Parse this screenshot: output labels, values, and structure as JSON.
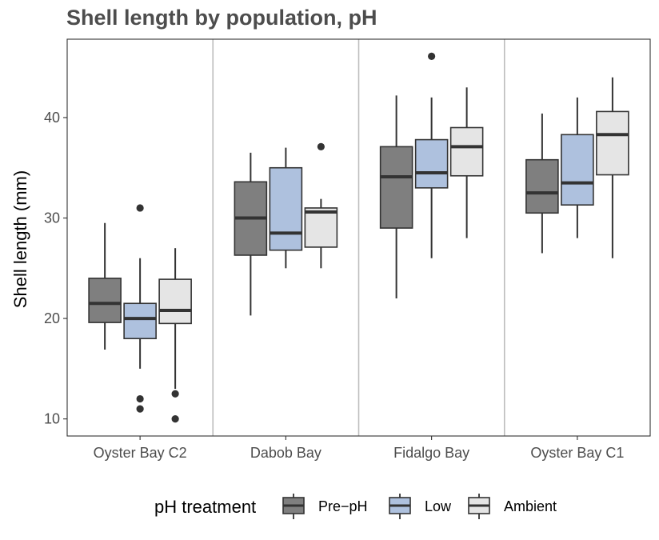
{
  "chart_data": {
    "type": "boxplot",
    "title": "Shell length by population, pH",
    "xlabel": "",
    "ylabel": "Shell length (mm)",
    "ylim": [
      8.3,
      47.8
    ],
    "yticks": [
      10,
      20,
      30,
      40
    ],
    "grid": false,
    "facet_separators": true,
    "categories": [
      "Oyster Bay C2",
      "Dabob Bay",
      "Fidalgo Bay",
      "Oyster Bay C1"
    ],
    "legend": {
      "title": "pH treatment",
      "position": "bottom",
      "entries": [
        "Pre−pH",
        "Low",
        "Ambient"
      ]
    },
    "series": [
      {
        "name": "Pre−pH",
        "color": "#7f7f7f",
        "boxes": [
          {
            "whisker_low": 16.9,
            "q1": 19.6,
            "median": 21.5,
            "q3": 24.0,
            "whisker_high": 29.5,
            "outliers": []
          },
          {
            "whisker_low": 20.3,
            "q1": 26.3,
            "median": 30.0,
            "q3": 33.6,
            "whisker_high": 36.5,
            "outliers": []
          },
          {
            "whisker_low": 22.0,
            "q1": 29.0,
            "median": 34.1,
            "q3": 37.1,
            "whisker_high": 42.2,
            "outliers": []
          },
          {
            "whisker_low": 26.5,
            "q1": 30.5,
            "median": 32.5,
            "q3": 35.8,
            "whisker_high": 40.4,
            "outliers": []
          }
        ]
      },
      {
        "name": "Low",
        "color": "#aec1de",
        "boxes": [
          {
            "whisker_low": 15.0,
            "q1": 18.0,
            "median": 20.0,
            "q3": 21.5,
            "whisker_high": 26.0,
            "outliers": [
              31.0,
              12.0,
              11.0
            ]
          },
          {
            "whisker_low": 25.0,
            "q1": 26.8,
            "median": 28.5,
            "q3": 35.0,
            "whisker_high": 37.0,
            "outliers": []
          },
          {
            "whisker_low": 26.0,
            "q1": 33.0,
            "median": 34.5,
            "q3": 37.8,
            "whisker_high": 42.0,
            "outliers": [
              46.1
            ]
          },
          {
            "whisker_low": 28.0,
            "q1": 31.3,
            "median": 33.5,
            "q3": 38.3,
            "whisker_high": 42.0,
            "outliers": []
          }
        ]
      },
      {
        "name": "Ambient",
        "color": "#e5e5e5",
        "boxes": [
          {
            "whisker_low": 13.0,
            "q1": 19.5,
            "median": 20.8,
            "q3": 23.9,
            "whisker_high": 27.0,
            "outliers": [
              12.5,
              10.0
            ]
          },
          {
            "whisker_low": 25.0,
            "q1": 27.1,
            "median": 30.6,
            "q3": 31.0,
            "whisker_high": 31.9,
            "outliers": [
              37.1
            ]
          },
          {
            "whisker_low": 28.0,
            "q1": 34.2,
            "median": 37.1,
            "q3": 39.0,
            "whisker_high": 43.0,
            "outliers": []
          },
          {
            "whisker_low": 26.0,
            "q1": 34.3,
            "median": 38.3,
            "q3": 40.6,
            "whisker_high": 44.0,
            "outliers": []
          }
        ]
      }
    ]
  }
}
